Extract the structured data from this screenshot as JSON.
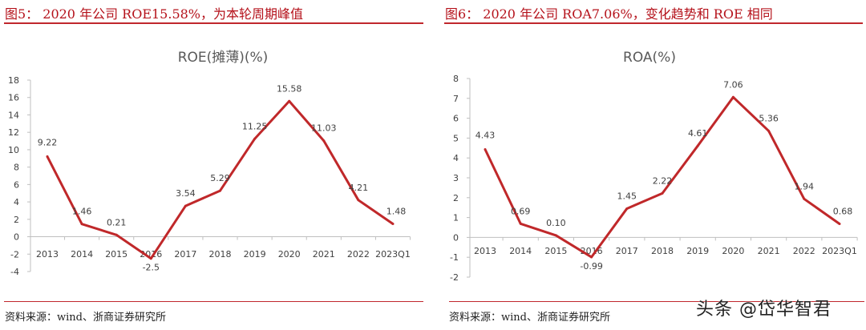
{
  "figures": [
    {
      "caption": "图5：  2020 年公司 ROE15.58%，为本轮周期峰值",
      "source": "资料来源：wind、浙商证券研究所"
    },
    {
      "caption": "图6：  2020 年公司 ROA7.06%，变化趋势和 ROE 相同",
      "source": "资料来源：wind、浙商证券研究所"
    }
  ],
  "watermark": "头条 @岱华智君",
  "chart_data": [
    {
      "type": "line",
      "title": "ROE(摊薄)(%)",
      "categories": [
        "2013",
        "2014",
        "2015",
        "2016",
        "2017",
        "2018",
        "2019",
        "2020",
        "2021",
        "2022",
        "2023Q1"
      ],
      "values": [
        9.22,
        1.46,
        0.21,
        -2.5,
        3.54,
        5.29,
        11.25,
        15.58,
        11.03,
        4.21,
        1.48
      ],
      "data_labels": [
        "9.22",
        "1.46",
        "0.21",
        "-2.5",
        "3.54",
        "5.29",
        "11.25",
        "15.58",
        "11.03",
        "4.21",
        "1.48"
      ],
      "ylim": [
        -4,
        18
      ],
      "yticks": [
        -4,
        -2,
        0,
        2,
        4,
        6,
        8,
        10,
        12,
        14,
        16,
        18
      ],
      "grid": false,
      "line_color": "#c0282a"
    },
    {
      "type": "line",
      "title": "ROA(%)",
      "categories": [
        "2013",
        "2014",
        "2015",
        "2016",
        "2017",
        "2018",
        "2019",
        "2020",
        "2021",
        "2022",
        "2023Q1"
      ],
      "values": [
        4.43,
        0.69,
        0.1,
        -0.99,
        1.45,
        2.22,
        4.61,
        7.06,
        5.36,
        1.94,
        0.68
      ],
      "data_labels": [
        "4.43",
        "0.69",
        "0.10",
        "-0.99",
        "1.45",
        "2.22",
        "4.61",
        "7.06",
        "5.36",
        "1.94",
        "0.68"
      ],
      "ylim": [
        -2,
        8
      ],
      "yticks": [
        -2,
        -1,
        0,
        1,
        2,
        3,
        4,
        5,
        6,
        7,
        8
      ],
      "grid": false,
      "line_color": "#c0282a"
    }
  ]
}
